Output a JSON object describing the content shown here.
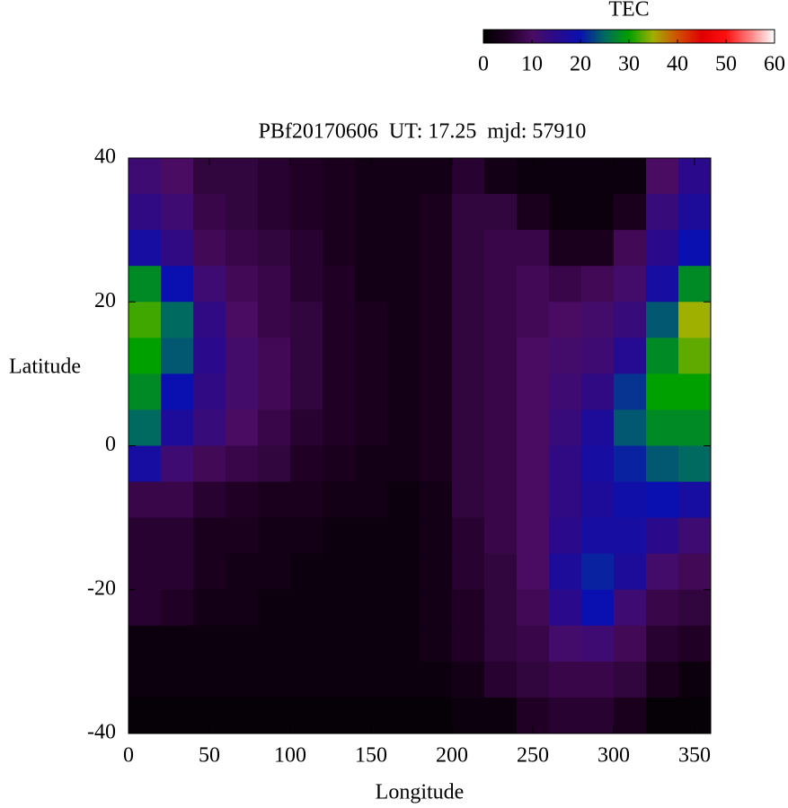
{
  "chart_data": {
    "type": "heatmap",
    "title": "PBf20170606  UT: 17.25  mjd: 57910",
    "xlabel": "Longitude",
    "ylabel": "Latitude",
    "x": [
      10,
      30,
      50,
      70,
      90,
      110,
      130,
      150,
      170,
      190,
      210,
      230,
      250,
      270,
      290,
      310,
      330,
      350
    ],
    "y": [
      37.5,
      32.5,
      27.5,
      22.5,
      17.5,
      12.5,
      7.5,
      2.5,
      -2.5,
      -7.5,
      -12.5,
      -17.5,
      -22.5,
      -27.5,
      -32.5,
      -37.5
    ],
    "z": [
      [
        12,
        10,
        7,
        7,
        6,
        5,
        4,
        3,
        3,
        3,
        6,
        3,
        2,
        2,
        2,
        2,
        10,
        15
      ],
      [
        14,
        12,
        8,
        7,
        6,
        5,
        4,
        3,
        3,
        4,
        7,
        7,
        4,
        2,
        2,
        4,
        13,
        17
      ],
      [
        18,
        14,
        9,
        8,
        7,
        6,
        4,
        3,
        3,
        4,
        7,
        8,
        8,
        4,
        4,
        9,
        15,
        20
      ],
      [
        28,
        20,
        12,
        9,
        8,
        6,
        5,
        3,
        3,
        4,
        7,
        8,
        9,
        8,
        9,
        11,
        18,
        28
      ],
      [
        32,
        25,
        14,
        10,
        8,
        7,
        5,
        4,
        3,
        4,
        7,
        8,
        9,
        10,
        11,
        13,
        24,
        35
      ],
      [
        30,
        24,
        15,
        11,
        9,
        7,
        5,
        4,
        3,
        4,
        7,
        8,
        10,
        11,
        12,
        16,
        28,
        33
      ],
      [
        28,
        20,
        14,
        11,
        9,
        7,
        5,
        4,
        3,
        4,
        7,
        8,
        10,
        12,
        14,
        22,
        30,
        30
      ],
      [
        25,
        17,
        13,
        10,
        8,
        6,
        5,
        4,
        3,
        4,
        7,
        8,
        10,
        13,
        17,
        24,
        28,
        28
      ],
      [
        18,
        12,
        9,
        8,
        7,
        5,
        4,
        3,
        3,
        4,
        7,
        8,
        10,
        14,
        18,
        21,
        24,
        25
      ],
      [
        8,
        8,
        6,
        5,
        4,
        4,
        3,
        3,
        2,
        3,
        7,
        8,
        10,
        14,
        17,
        19,
        20,
        18
      ],
      [
        6,
        6,
        4,
        4,
        3,
        3,
        2,
        2,
        2,
        3,
        6,
        8,
        10,
        15,
        18,
        18,
        15,
        12
      ],
      [
        6,
        6,
        4,
        3,
        3,
        2,
        2,
        2,
        2,
        3,
        6,
        7,
        10,
        17,
        21,
        17,
        11,
        9
      ],
      [
        6,
        5,
        3,
        3,
        2,
        2,
        2,
        2,
        2,
        3,
        5,
        7,
        9,
        15,
        20,
        12,
        8,
        7
      ],
      [
        2,
        2,
        2,
        2,
        2,
        2,
        2,
        2,
        2,
        3,
        5,
        7,
        8,
        11,
        12,
        9,
        6,
        5
      ],
      [
        2,
        2,
        2,
        2,
        2,
        2,
        2,
        2,
        2,
        2,
        3,
        6,
        7,
        8,
        8,
        7,
        4,
        2
      ],
      [
        1,
        1,
        1,
        1,
        1,
        1,
        1,
        1,
        1,
        1,
        2,
        2,
        5,
        6,
        6,
        4,
        1,
        1
      ]
    ],
    "xlim": [
      0,
      360
    ],
    "xticks": [
      0,
      50,
      100,
      150,
      200,
      250,
      300,
      350
    ],
    "ylim": [
      -40,
      40
    ],
    "yticks": [
      -40,
      -20,
      0,
      20,
      40
    ],
    "colorbar": {
      "label": "TEC",
      "lim": [
        0,
        60
      ],
      "ticks": [
        0,
        10,
        20,
        30,
        40,
        50,
        60
      ]
    },
    "colormap": [
      "#000000",
      "#200024",
      "#4a0c62",
      "#2a0a8a",
      "#0a10b0",
      "#006a60",
      "#00a000",
      "#a0b000",
      "#d05000",
      "#e00000",
      "#ff1010",
      "#ff8080",
      "#ffffff"
    ]
  }
}
